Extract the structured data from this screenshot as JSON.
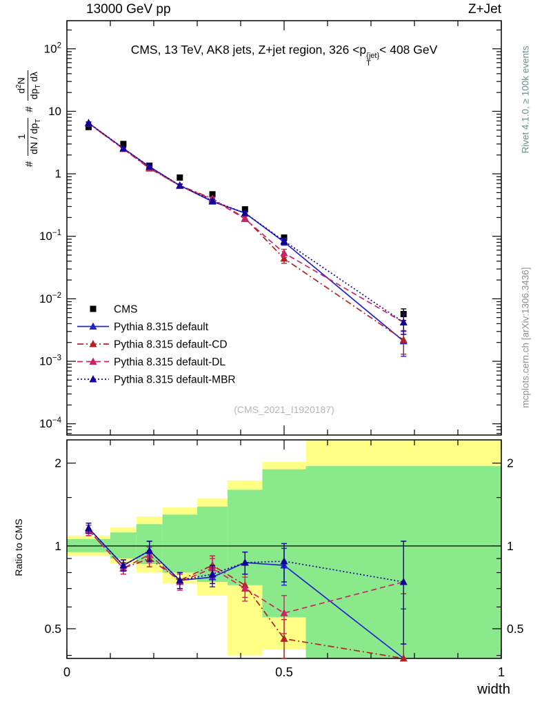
{
  "header": {
    "left": "13000 GeV pp",
    "right": "Z+Jet"
  },
  "rivet_label": "Rivet 4.1.0, ≥ 100k events",
  "mcplots_label": "mcplots.cern.ch [arXiv:1306.3436]",
  "watermark": "(CMS_2021_I1920187)",
  "title": {
    "pre": "CMS, 13 TeV, AK8 jets, Z+jet region, 326 <p",
    "sup": "{jet}",
    "sub": "T",
    "post": "< 408 GeV"
  },
  "ylabel": {
    "h1": "#",
    "f1n": "1",
    "f1d_pre": "dN / dp",
    "f1d_sub": "T",
    "h2": "#",
    "f2n_pre": "d",
    "f2n_sup": "2",
    "f2n_post": "N",
    "f2d_pre": "dp",
    "f2d_sub": "T",
    "f2d_post": " dλ"
  },
  "ratio_ylabel": "Ratio to CMS",
  "xlabel": "width",
  "chart_data": {
    "type": "line",
    "yscale": "log",
    "title": "CMS, 13 TeV, AK8 jets, Z+jet region, 326 <pT{jet}< 408 GeV",
    "xlabel": "width",
    "ratio_label": "Ratio to CMS",
    "xlim": [
      0,
      1
    ],
    "ylim_main_log10": [
      -4.18,
      2.45
    ],
    "ylim_ratio": [
      0.39,
      2.43
    ],
    "x": [
      0.05,
      0.13,
      0.19,
      0.26,
      0.335,
      0.41,
      0.5,
      0.775
    ],
    "series": [
      {
        "id": "cms",
        "name": "CMS",
        "color": "#000000",
        "marker": "square",
        "linestyle": "none",
        "values": [
          5.6,
          3.0,
          1.35,
          0.87,
          0.47,
          0.27,
          0.095,
          0.0057
        ],
        "yerr": [
          0.4,
          0.2,
          0.09,
          0.06,
          0.04,
          0.025,
          0.01,
          0.0012
        ]
      },
      {
        "id": "pythia-default",
        "name": "Pythia 8.315 default",
        "color": "#2222cc",
        "marker": "triangle",
        "linestyle": "solid",
        "values": [
          6.5,
          2.55,
          1.3,
          0.65,
          0.36,
          0.235,
          0.081,
          0.0021
        ],
        "yerr": [
          0.25,
          0.1,
          0.06,
          0.035,
          0.025,
          0.018,
          0.009,
          0.0009
        ],
        "ratio": [
          1.16,
          0.85,
          0.96,
          0.75,
          0.77,
          0.87,
          0.85,
          0.37
        ],
        "ratio_err": [
          0.05,
          0.04,
          0.08,
          0.05,
          0.06,
          0.08,
          0.13,
          0.22
        ]
      },
      {
        "id": "pythia-default-cd",
        "name": "Pythia 8.315 default-CD",
        "color": "#b22222",
        "marker": "triangle",
        "linestyle": "dashdot",
        "values": [
          6.4,
          2.5,
          1.22,
          0.65,
          0.4,
          0.195,
          0.044,
          0.0022
        ],
        "yerr": [
          0.25,
          0.1,
          0.06,
          0.035,
          0.025,
          0.018,
          0.007,
          0.0009
        ],
        "ratio": [
          1.14,
          0.83,
          0.9,
          0.75,
          0.85,
          0.72,
          0.46,
          0.39
        ],
        "ratio_err": [
          0.05,
          0.04,
          0.06,
          0.05,
          0.07,
          0.07,
          0.08,
          0.28
        ]
      },
      {
        "id": "pythia-default-dl",
        "name": "Pythia 8.315 default-DL",
        "color": "#cc2266",
        "marker": "triangle",
        "linestyle": "dashed",
        "values": [
          6.4,
          2.5,
          1.25,
          0.64,
          0.39,
          0.19,
          0.054,
          0.0042
        ],
        "yerr": [
          0.25,
          0.1,
          0.06,
          0.035,
          0.025,
          0.018,
          0.008,
          0.0015
        ],
        "ratio": [
          1.14,
          0.83,
          0.93,
          0.74,
          0.83,
          0.7,
          0.57,
          0.74
        ],
        "ratio_err": [
          0.05,
          0.04,
          0.06,
          0.05,
          0.07,
          0.07,
          0.09,
          0.3
        ]
      },
      {
        "id": "pythia-default-mbr",
        "name": "Pythia 8.315 default-MBR",
        "color": "#110099",
        "marker": "triangle",
        "linestyle": "dotted",
        "values": [
          6.5,
          2.55,
          1.3,
          0.65,
          0.37,
          0.235,
          0.084,
          0.0042
        ],
        "yerr": [
          0.25,
          0.1,
          0.06,
          0.035,
          0.025,
          0.018,
          0.009,
          0.0015
        ],
        "ratio": [
          1.16,
          0.85,
          0.96,
          0.75,
          0.79,
          0.87,
          0.88,
          0.74
        ],
        "ratio_err": [
          0.05,
          0.04,
          0.08,
          0.05,
          0.06,
          0.08,
          0.14,
          0.3
        ]
      }
    ],
    "ratio_bands": {
      "edges": [
        0,
        0.1,
        0.16,
        0.22,
        0.3,
        0.37,
        0.45,
        0.55,
        1.0
      ],
      "yellow": [
        [
          0.92,
          1.09
        ],
        [
          0.86,
          1.17
        ],
        [
          0.8,
          1.28
        ],
        [
          0.73,
          1.38
        ],
        [
          0.66,
          1.49
        ],
        [
          0.4,
          1.73
        ],
        [
          0.42,
          2.02
        ],
        [
          0.39,
          2.43
        ]
      ],
      "green": [
        [
          0.95,
          1.06
        ],
        [
          0.9,
          1.12
        ],
        [
          0.86,
          1.2
        ],
        [
          0.8,
          1.3
        ],
        [
          0.74,
          1.39
        ],
        [
          0.72,
          1.6
        ],
        [
          0.55,
          1.9
        ],
        [
          0.39,
          1.95
        ]
      ]
    },
    "colors": {
      "band_yellow": "#ffff85",
      "band_green": "#8ae98a"
    },
    "yticks_main_decades": [
      2,
      1,
      0,
      -1,
      -2,
      -3,
      -4
    ],
    "yticks_ratio": {
      "major": [
        0.5,
        1,
        2
      ],
      "labels": [
        "0.5",
        "1",
        "2"
      ],
      "minor": [
        0.4,
        0.6,
        0.7,
        0.8,
        0.9,
        1.5
      ]
    },
    "xticks": {
      "major": [
        0,
        0.5,
        1
      ],
      "labels": [
        "0",
        "0.5",
        "1"
      ],
      "minor_step": 0.1
    }
  }
}
